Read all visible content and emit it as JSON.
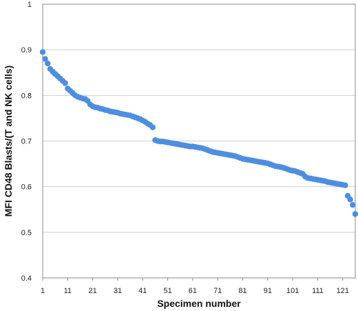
{
  "chart_data": {
    "type": "scatter",
    "title": "",
    "xlabel": "Specimen number",
    "ylabel": "MFI CD48 Blasts/(T and NK cells)",
    "xlim": [
      1,
      126
    ],
    "ylim": [
      0.4,
      1
    ],
    "grid": true,
    "legend": "none",
    "marker_color": "#4d8ee0",
    "y_ticks": [
      "0.4",
      "0.5",
      "0.6",
      "0.7",
      "0.8",
      "0.9",
      "1"
    ],
    "x_ticks": [
      "1",
      "11",
      "21",
      "31",
      "41",
      "51",
      "61",
      "71",
      "81",
      "91",
      "101",
      "111",
      "121"
    ],
    "series": [
      {
        "x": [
          1,
          2,
          3,
          4,
          5,
          6,
          7,
          8,
          9,
          10,
          11,
          12,
          13,
          14,
          15,
          16,
          17,
          18,
          19,
          20,
          21,
          22,
          23,
          24,
          25,
          26,
          27,
          28,
          29,
          30,
          31,
          32,
          33,
          34,
          35,
          36,
          37,
          38,
          39,
          40,
          41,
          42,
          43,
          44,
          45,
          46,
          47,
          48,
          49,
          50,
          51,
          52,
          53,
          54,
          55,
          56,
          57,
          58,
          59,
          60,
          61,
          62,
          63,
          64,
          65,
          66,
          67,
          68,
          69,
          70,
          71,
          72,
          73,
          74,
          75,
          76,
          77,
          78,
          79,
          80,
          81,
          82,
          83,
          84,
          85,
          86,
          87,
          88,
          89,
          90,
          91,
          92,
          93,
          94,
          95,
          96,
          97,
          98,
          99,
          100,
          101,
          102,
          103,
          104,
          105,
          106,
          107,
          108,
          109,
          110,
          111,
          112,
          113,
          114,
          115,
          116,
          117,
          118,
          119,
          120,
          121,
          122,
          123,
          124,
          125,
          126
        ],
        "y": [
          0.895,
          0.88,
          0.87,
          0.858,
          0.852,
          0.847,
          0.842,
          0.837,
          0.832,
          0.827,
          0.815,
          0.81,
          0.805,
          0.8,
          0.797,
          0.795,
          0.793,
          0.792,
          0.788,
          0.78,
          0.776,
          0.774,
          0.773,
          0.771,
          0.77,
          0.768,
          0.767,
          0.765,
          0.764,
          0.763,
          0.762,
          0.76,
          0.759,
          0.758,
          0.757,
          0.756,
          0.754,
          0.752,
          0.75,
          0.748,
          0.745,
          0.742,
          0.738,
          0.735,
          0.73,
          0.702,
          0.7,
          0.699,
          0.699,
          0.698,
          0.697,
          0.696,
          0.695,
          0.694,
          0.693,
          0.692,
          0.691,
          0.69,
          0.689,
          0.688,
          0.688,
          0.687,
          0.686,
          0.685,
          0.684,
          0.682,
          0.68,
          0.678,
          0.676,
          0.675,
          0.674,
          0.673,
          0.672,
          0.671,
          0.67,
          0.669,
          0.668,
          0.667,
          0.665,
          0.663,
          0.661,
          0.66,
          0.659,
          0.658,
          0.657,
          0.656,
          0.655,
          0.654,
          0.653,
          0.652,
          0.651,
          0.649,
          0.647,
          0.645,
          0.644,
          0.643,
          0.642,
          0.64,
          0.638,
          0.636,
          0.635,
          0.634,
          0.632,
          0.63,
          0.628,
          0.622,
          0.619,
          0.618,
          0.617,
          0.616,
          0.615,
          0.614,
          0.613,
          0.612,
          0.61,
          0.609,
          0.608,
          0.607,
          0.606,
          0.605,
          0.604,
          0.603,
          0.58,
          0.572,
          0.56,
          0.54
        ]
      }
    ]
  }
}
